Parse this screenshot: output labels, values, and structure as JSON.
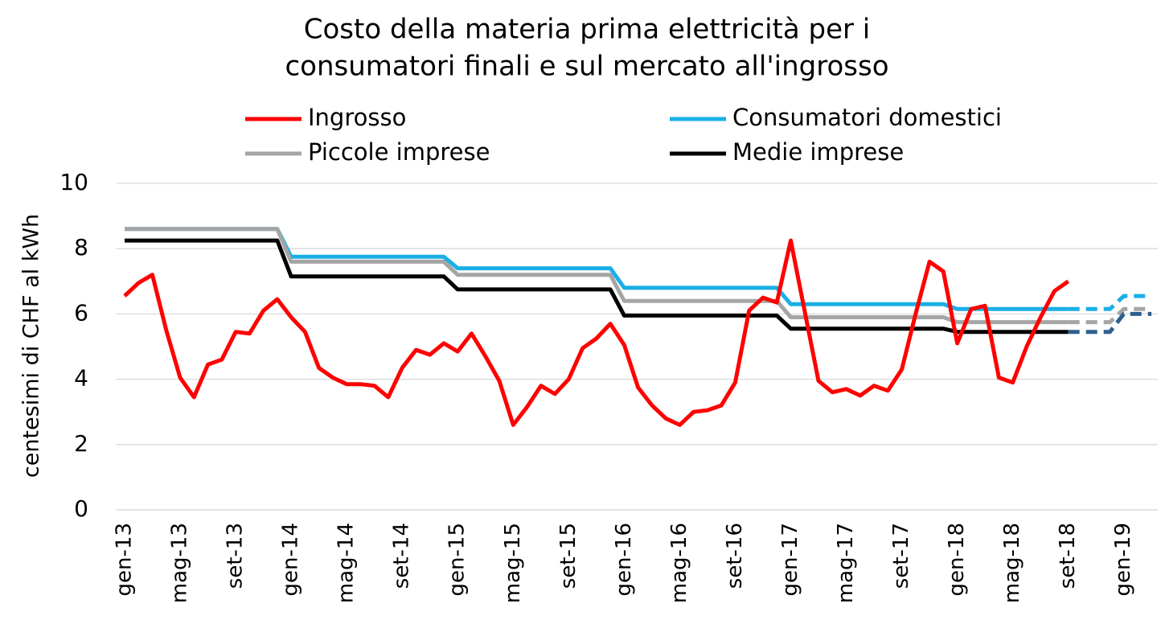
{
  "chart_data": {
    "type": "line",
    "title": [
      "Costo della materia prima elettricità per i",
      "consumatori finali e sul mercato all'ingrosso"
    ],
    "y_label": "centesimi di CHF al kWh",
    "categories": [
      "gen-13",
      null,
      null,
      null,
      "mag-13",
      null,
      null,
      null,
      "set-13",
      null,
      null,
      null,
      "gen-14",
      null,
      null,
      null,
      "mag-14",
      null,
      null,
      null,
      "set-14",
      null,
      null,
      null,
      "gen-15",
      null,
      null,
      null,
      "mag-15",
      null,
      null,
      null,
      "set-15",
      null,
      null,
      null,
      "gen-16",
      null,
      null,
      null,
      "mag-16",
      null,
      null,
      null,
      "set-16",
      null,
      null,
      null,
      "gen-17",
      null,
      null,
      null,
      "mag-17",
      null,
      null,
      null,
      "set-17",
      null,
      null,
      null,
      "gen-18",
      null,
      null,
      null,
      "mag-18",
      null,
      null,
      null,
      "set-18",
      null,
      null,
      null,
      "gen-19",
      null,
      null
    ],
    "dashed_from_index": 68,
    "series": [
      {
        "name": "Consumatori domestici",
        "color": "#1aafe6",
        "values": [
          8.6,
          8.6,
          8.6,
          8.6,
          8.6,
          8.6,
          8.6,
          8.6,
          8.6,
          8.6,
          8.6,
          8.6,
          7.75,
          7.75,
          7.75,
          7.75,
          7.75,
          7.75,
          7.75,
          7.75,
          7.75,
          7.75,
          7.75,
          7.75,
          7.4,
          7.4,
          7.4,
          7.4,
          7.4,
          7.4,
          7.4,
          7.4,
          7.4,
          7.4,
          7.4,
          7.4,
          6.8,
          6.8,
          6.8,
          6.8,
          6.8,
          6.8,
          6.8,
          6.8,
          6.8,
          6.8,
          6.8,
          6.8,
          6.3,
          6.3,
          6.3,
          6.3,
          6.3,
          6.3,
          6.3,
          6.3,
          6.3,
          6.3,
          6.3,
          6.3,
          6.15,
          6.15,
          6.15,
          6.15,
          6.15,
          6.15,
          6.15,
          6.15,
          6.15,
          6.15,
          6.15,
          6.15,
          6.55,
          6.55,
          6.55
        ]
      },
      {
        "name": "Piccole imprese",
        "color": "#a5a5a5",
        "values": [
          8.6,
          8.6,
          8.6,
          8.6,
          8.6,
          8.6,
          8.6,
          8.6,
          8.6,
          8.6,
          8.6,
          8.6,
          7.6,
          7.6,
          7.6,
          7.6,
          7.6,
          7.6,
          7.6,
          7.6,
          7.6,
          7.6,
          7.6,
          7.6,
          7.2,
          7.2,
          7.2,
          7.2,
          7.2,
          7.2,
          7.2,
          7.2,
          7.2,
          7.2,
          7.2,
          7.2,
          6.4,
          6.4,
          6.4,
          6.4,
          6.4,
          6.4,
          6.4,
          6.4,
          6.4,
          6.4,
          6.4,
          6.4,
          5.9,
          5.9,
          5.9,
          5.9,
          5.9,
          5.9,
          5.9,
          5.9,
          5.9,
          5.9,
          5.9,
          5.9,
          5.75,
          5.75,
          5.75,
          5.75,
          5.75,
          5.75,
          5.75,
          5.75,
          5.75,
          5.75,
          5.75,
          5.75,
          6.15,
          6.15,
          6.15
        ]
      },
      {
        "name": "Medie imprese",
        "color": "#000000",
        "dashed_color": "#2f5f8f",
        "values": [
          8.25,
          8.25,
          8.25,
          8.25,
          8.25,
          8.25,
          8.25,
          8.25,
          8.25,
          8.25,
          8.25,
          8.25,
          7.15,
          7.15,
          7.15,
          7.15,
          7.15,
          7.15,
          7.15,
          7.15,
          7.15,
          7.15,
          7.15,
          7.15,
          6.75,
          6.75,
          6.75,
          6.75,
          6.75,
          6.75,
          6.75,
          6.75,
          6.75,
          6.75,
          6.75,
          6.75,
          5.95,
          5.95,
          5.95,
          5.95,
          5.95,
          5.95,
          5.95,
          5.95,
          5.95,
          5.95,
          5.95,
          5.95,
          5.55,
          5.55,
          5.55,
          5.55,
          5.55,
          5.55,
          5.55,
          5.55,
          5.55,
          5.55,
          5.55,
          5.55,
          5.45,
          5.45,
          5.45,
          5.45,
          5.45,
          5.45,
          5.45,
          5.45,
          5.45,
          5.45,
          5.45,
          5.45,
          6.0,
          6.0,
          6.0
        ]
      },
      {
        "name": "Ingrosso",
        "color": "#ff0000",
        "values": [
          6.55,
          6.95,
          7.2,
          5.5,
          4.05,
          3.45,
          4.45,
          4.6,
          5.45,
          5.4,
          6.1,
          6.45,
          5.9,
          5.45,
          4.35,
          4.05,
          3.85,
          3.85,
          3.8,
          3.45,
          4.35,
          4.9,
          4.75,
          5.1,
          4.85,
          5.4,
          4.7,
          3.95,
          2.6,
          3.15,
          3.8,
          3.55,
          4.0,
          4.95,
          5.25,
          5.7,
          5.05,
          3.75,
          3.2,
          2.8,
          2.6,
          3.0,
          3.05,
          3.2,
          3.9,
          6.1,
          6.5,
          6.35,
          8.25,
          6.1,
          3.95,
          3.6,
          3.7,
          3.5,
          3.8,
          3.65,
          4.3,
          6.0,
          7.6,
          7.3,
          5.1,
          6.15,
          6.25,
          4.05,
          3.9,
          5.0,
          5.9,
          6.7,
          7.0,
          null,
          null,
          null,
          null,
          null,
          null
        ]
      }
    ],
    "legend_order": [
      3,
      0,
      1,
      2
    ],
    "ylim": [
      0,
      10
    ],
    "yticks": [
      0,
      2,
      4,
      6,
      8,
      10
    ],
    "grid": true
  }
}
